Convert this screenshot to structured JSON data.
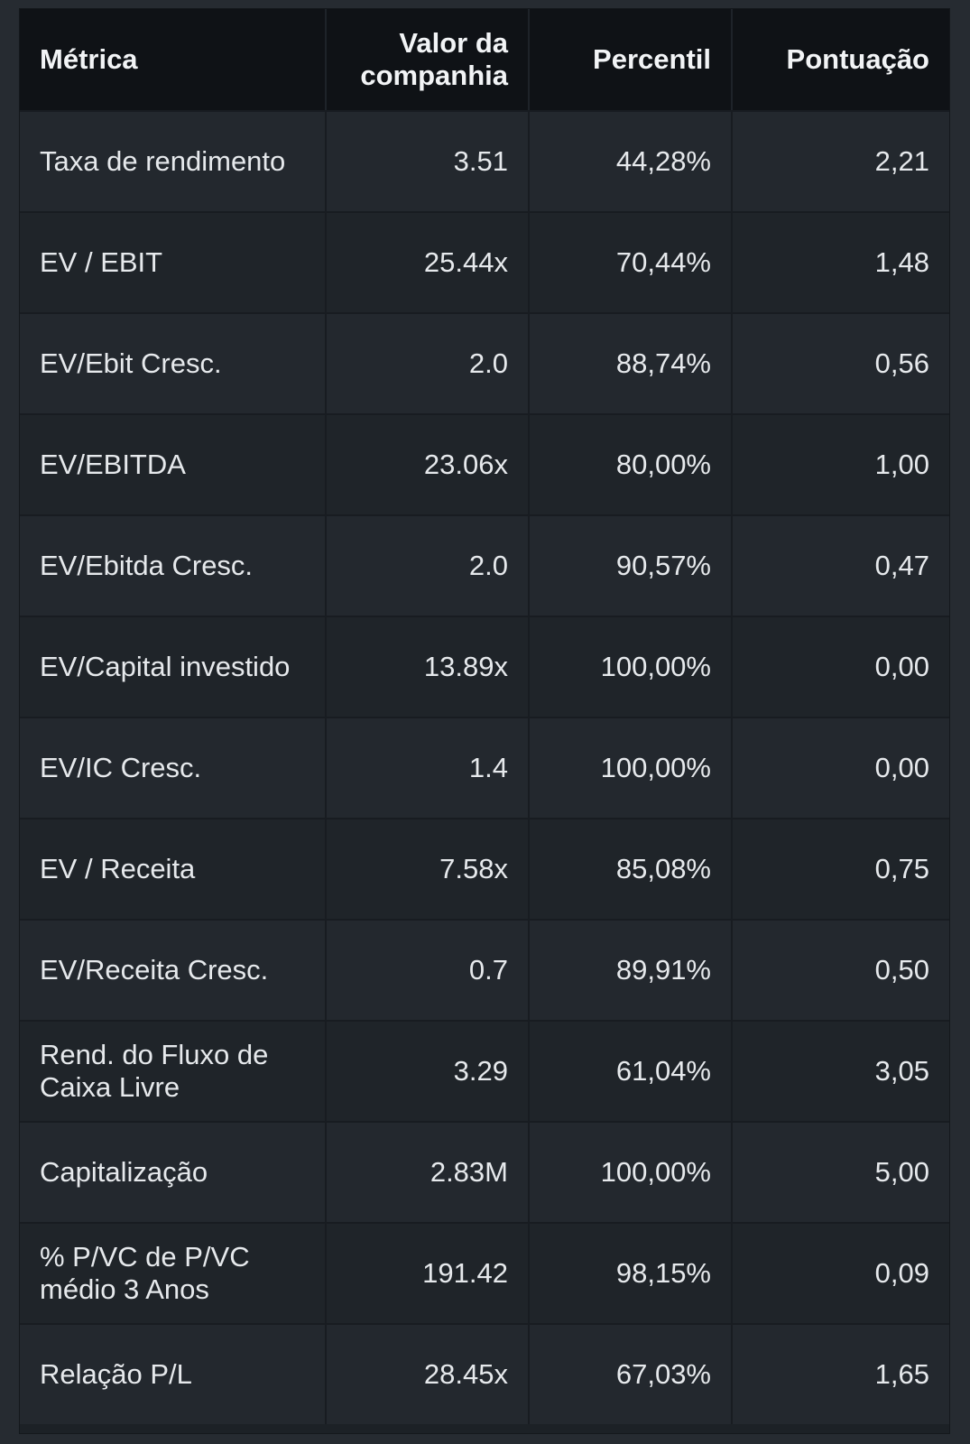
{
  "table": {
    "headers": {
      "metric": "Métrica",
      "company_value": "Valor da companhia",
      "percentile": "Percentil",
      "score": "Pontuação"
    },
    "rows": [
      {
        "metric": "Taxa de rendimento",
        "value": "3.51",
        "percentile": "44,28%",
        "score": "2,21"
      },
      {
        "metric": "EV / EBIT",
        "value": "25.44x",
        "percentile": "70,44%",
        "score": "1,48"
      },
      {
        "metric": "EV/Ebit Cresc.",
        "value": "2.0",
        "percentile": "88,74%",
        "score": "0,56"
      },
      {
        "metric": "EV/EBITDA",
        "value": "23.06x",
        "percentile": "80,00%",
        "score": "1,00"
      },
      {
        "metric": "EV/Ebitda Cresc.",
        "value": "2.0",
        "percentile": "90,57%",
        "score": "0,47"
      },
      {
        "metric": "EV/Capital investido",
        "value": "13.89x",
        "percentile": "100,00%",
        "score": "0,00"
      },
      {
        "metric": "EV/IC Cresc.",
        "value": "1.4",
        "percentile": "100,00%",
        "score": "0,00"
      },
      {
        "metric": "EV / Receita",
        "value": "7.58x",
        "percentile": "85,08%",
        "score": "0,75"
      },
      {
        "metric": "EV/Receita Cresc.",
        "value": "0.7",
        "percentile": "89,91%",
        "score": "0,50"
      },
      {
        "metric": "Rend. do Fluxo de Caixa Livre",
        "value": "3.29",
        "percentile": "61,04%",
        "score": "3,05"
      },
      {
        "metric": "Capitalização",
        "value": "2.83M",
        "percentile": "100,00%",
        "score": "5,00"
      },
      {
        "metric": "% P/VC de P/VC médio 3 Anos",
        "value": "191.42",
        "percentile": "98,15%",
        "score": "0,09"
      },
      {
        "metric": "Relação P/L",
        "value": "28.45x",
        "percentile": "67,03%",
        "score": "1,65"
      }
    ]
  },
  "colors": {
    "page_background": "#262b31",
    "header_background": "#0f1216",
    "row_background_a": "#23282e",
    "row_background_b": "#1f2429",
    "text": "#e6e9ec"
  }
}
